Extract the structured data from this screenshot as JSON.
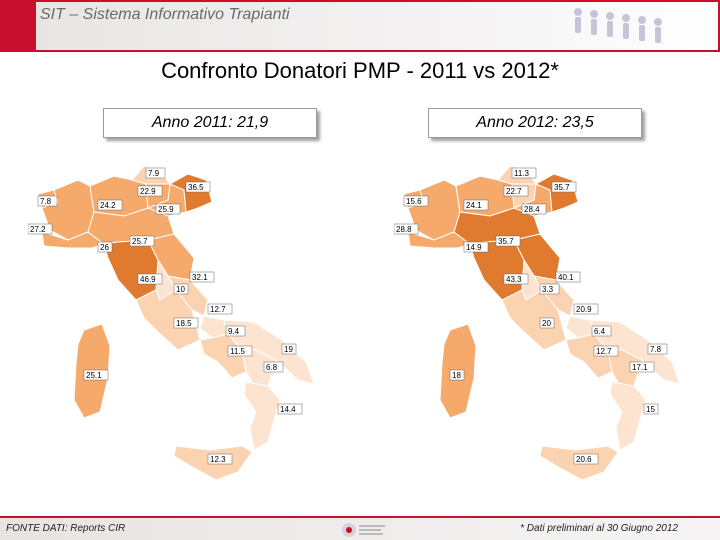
{
  "header": {
    "title": "SIT – Sistema Informativo Trapianti"
  },
  "main_title": "Confronto Donatori PMP - 2011 vs 2012*",
  "maps": [
    {
      "year_label": "Anno 2011:  21,9",
      "regions": [
        {
          "name": "Valle d'Aosta",
          "value": "7.8",
          "color": "#f5a96a"
        },
        {
          "name": "Piemonte",
          "value": "24.2",
          "color": "#f5a96a"
        },
        {
          "name": "Lombardia",
          "value": "22.9",
          "color": "#f5a96a"
        },
        {
          "name": "Trentino",
          "value": "7.9",
          "color": "#fbd3b0"
        },
        {
          "name": "Veneto",
          "value": "25.9",
          "color": "#f5a96a"
        },
        {
          "name": "Friuli Venezia Giulia",
          "value": "36.5",
          "color": "#e07a2e"
        },
        {
          "name": "Liguria",
          "value": "27.2",
          "color": "#f5a96a"
        },
        {
          "name": "Emilia Romagna",
          "value": "25.7",
          "color": "#f5a96a"
        },
        {
          "name": "Toscana",
          "value": "46.9",
          "color": "#e07a2e"
        },
        {
          "name": "Marche",
          "value": "32.1",
          "color": "#f5a96a"
        },
        {
          "name": "Umbria",
          "value": "10",
          "color": "#fde4d0"
        },
        {
          "name": "Lazio",
          "value": "18.5",
          "color": "#fbd3b0"
        },
        {
          "name": "Abruzzo",
          "value": "12.7",
          "color": "#fbd3b0"
        },
        {
          "name": "Molise",
          "value": "9.4",
          "color": "#fde4d0"
        },
        {
          "name": "Campania",
          "value": "11.5",
          "color": "#fbd3b0"
        },
        {
          "name": "Puglia",
          "value": "19",
          "color": "#fde4d0"
        },
        {
          "name": "Basilicata",
          "value": "6.8",
          "color": "#fde4d0"
        },
        {
          "name": "Calabria",
          "value": "14.4",
          "color": "#fde4d0"
        },
        {
          "name": "Sicilia",
          "value": "12.3",
          "color": "#fbd3b0"
        },
        {
          "name": "Sardegna",
          "value": "25.1",
          "color": "#f5a96a"
        },
        {
          "name": "Bolzano",
          "value": "26",
          "color": "#f5a96a"
        }
      ]
    },
    {
      "year_label": "Anno 2012:  23,5",
      "regions": [
        {
          "name": "Valle d'Aosta",
          "value": "15.6",
          "color": "#f5a96a"
        },
        {
          "name": "Piemonte",
          "value": "24.1",
          "color": "#f5a96a"
        },
        {
          "name": "Lombardia",
          "value": "22.7",
          "color": "#f5a96a"
        },
        {
          "name": "Trentino",
          "value": "11.3",
          "color": "#fbd3b0"
        },
        {
          "name": "Veneto",
          "value": "28.4",
          "color": "#f5a96a"
        },
        {
          "name": "Friuli Venezia Giulia",
          "value": "35.7",
          "color": "#e07a2e"
        },
        {
          "name": "Liguria",
          "value": "28.8",
          "color": "#f5a96a"
        },
        {
          "name": "Emilia Romagna",
          "value": "35.7",
          "color": "#e07a2e"
        },
        {
          "name": "Toscana",
          "value": "43.3",
          "color": "#e07a2e"
        },
        {
          "name": "Marche",
          "value": "40.1",
          "color": "#e07a2e"
        },
        {
          "name": "Umbria",
          "value": "3.3",
          "color": "#fde4d0"
        },
        {
          "name": "Lazio",
          "value": "20",
          "color": "#fbd3b0"
        },
        {
          "name": "Abruzzo",
          "value": "20.9",
          "color": "#fbd3b0"
        },
        {
          "name": "Molise",
          "value": "6.4",
          "color": "#fde4d0"
        },
        {
          "name": "Campania",
          "value": "12.7",
          "color": "#fbd3b0"
        },
        {
          "name": "Puglia",
          "value": "7.8",
          "color": "#fde4d0"
        },
        {
          "name": "Basilicata",
          "value": "17.1",
          "color": "#fbd3b0"
        },
        {
          "name": "Calabria",
          "value": "15",
          "color": "#fde4d0"
        },
        {
          "name": "Sicilia",
          "value": "20.6",
          "color": "#fbd3b0"
        },
        {
          "name": "Sardegna",
          "value": "18",
          "color": "#f5a96a"
        },
        {
          "name": "Bolzano",
          "value": "14.9",
          "color": "#fbd3b0"
        }
      ]
    }
  ],
  "footer": {
    "source": "FONTE DATI:  Reports CIR",
    "note": "* Dati  preliminari al 30 Giugno 2012"
  }
}
